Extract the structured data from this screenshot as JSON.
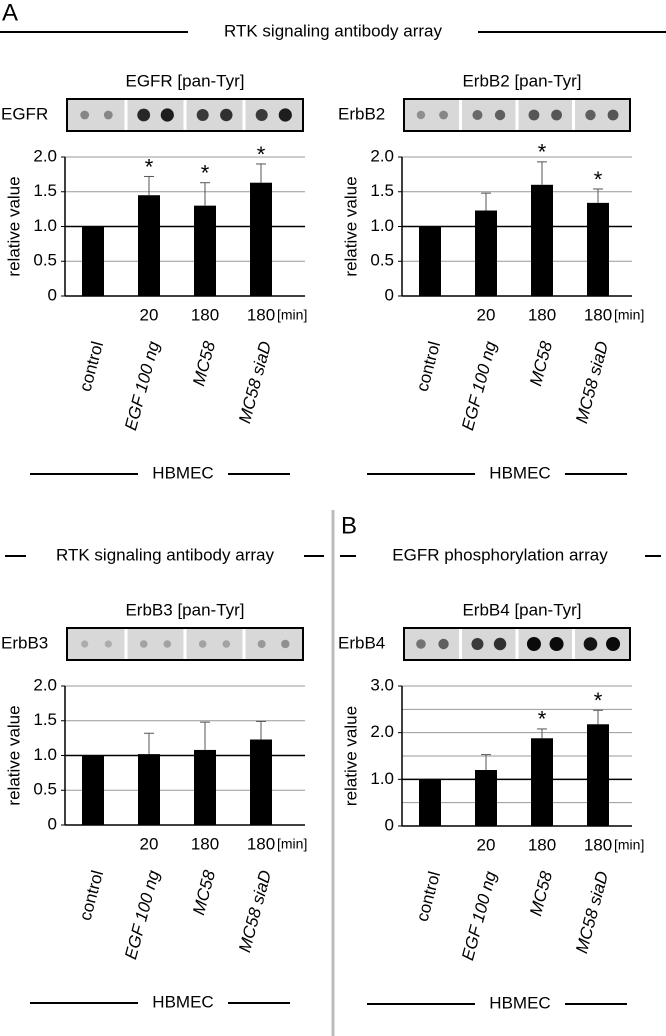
{
  "headers": [
    {
      "panel": "A",
      "title": "RTK signaling antibody array"
    },
    {
      "title": "RTK signaling antibody array"
    },
    {
      "panel": "B",
      "title": "EGFR phosphorylation array"
    }
  ],
  "chart_data": [
    {
      "type": "bar",
      "title": "EGFR [pan-Tyr]",
      "blot_label": "EGFR",
      "ylabel": "relative value",
      "categories": [
        "control",
        "EGF 100 ng",
        "MC58",
        "MC58 siaD"
      ],
      "times": [
        null,
        20,
        180,
        180
      ],
      "time_unit": "[min]",
      "group": "HBMEC",
      "values": [
        1,
        1.45,
        1.3,
        1.63
      ],
      "errors": [
        null,
        0.27,
        0.33,
        0.27
      ],
      "markers": [
        null,
        "*",
        "*",
        "*"
      ],
      "color": "#000000",
      "ylim": [
        0,
        2
      ],
      "yticks": [
        0,
        0.5,
        {
          "value": 1,
          "label": "1.0"
        },
        1.5,
        {
          "value": 2,
          "label": "2.0"
        }
      ],
      "grid": true,
      "reference_line": 1
    },
    {
      "type": "bar",
      "title": "ErbB2 [pan-Tyr]",
      "blot_label": "ErbB2",
      "ylabel": "relative value",
      "categories": [
        "control",
        "EGF 100 ng",
        "MC58",
        "MC58 siaD"
      ],
      "times": [
        null,
        20,
        180,
        180
      ],
      "time_unit": "[min]",
      "group": "HBMEC",
      "values": [
        1,
        1.23,
        1.6,
        1.34
      ],
      "errors": [
        null,
        0.25,
        0.33,
        0.2
      ],
      "markers": [
        null,
        null,
        "*",
        "*"
      ],
      "color": "#000000",
      "ylim": [
        0,
        2
      ],
      "yticks": [
        0,
        0.5,
        {
          "value": 1,
          "label": "1.0"
        },
        1.5,
        {
          "value": 2,
          "label": "2.0"
        }
      ],
      "grid": true,
      "reference_line": 1
    },
    {
      "type": "bar",
      "title": "ErbB3 [pan-Tyr]",
      "blot_label": "ErbB3",
      "ylabel": "relative value",
      "categories": [
        "control",
        "EGF 100 ng",
        "MC58",
        "MC58 siaD"
      ],
      "times": [
        null,
        20,
        180,
        180
      ],
      "time_unit": "[min]",
      "group": "HBMEC",
      "values": [
        1,
        1.02,
        1.08,
        1.23
      ],
      "errors": [
        null,
        0.3,
        0.4,
        0.26
      ],
      "markers": [
        null,
        null,
        null,
        null
      ],
      "color": "#000000",
      "ylim": [
        0,
        2
      ],
      "yticks": [
        0,
        0.5,
        {
          "value": 1,
          "label": "1.0"
        },
        1.5,
        {
          "value": 2,
          "label": "2.0"
        }
      ],
      "grid": true,
      "reference_line": 1
    },
    {
      "type": "bar",
      "title": "ErbB4 [pan-Tyr]",
      "blot_label": "ErbB4",
      "ylabel": "relative value",
      "categories": [
        "control",
        "EGF 100 ng",
        "MC58",
        "MC58 siaD"
      ],
      "times": [
        null,
        20,
        180,
        180
      ],
      "time_unit": "[min]",
      "group": "HBMEC",
      "values": [
        1,
        1.2,
        1.88,
        2.18
      ],
      "errors": [
        null,
        0.33,
        0.2,
        0.3
      ],
      "markers": [
        null,
        null,
        "*",
        "*"
      ],
      "color": "#000000",
      "ylim": [
        0,
        3
      ],
      "yticks": [
        0,
        {
          "value": 1,
          "label": "1.0"
        },
        {
          "value": 2,
          "label": "2.0"
        },
        {
          "value": 3,
          "label": "3.0"
        }
      ],
      "minor_yticks": [
        0.5,
        1.5,
        2.5
      ],
      "grid": true,
      "reference_line": 1
    }
  ]
}
